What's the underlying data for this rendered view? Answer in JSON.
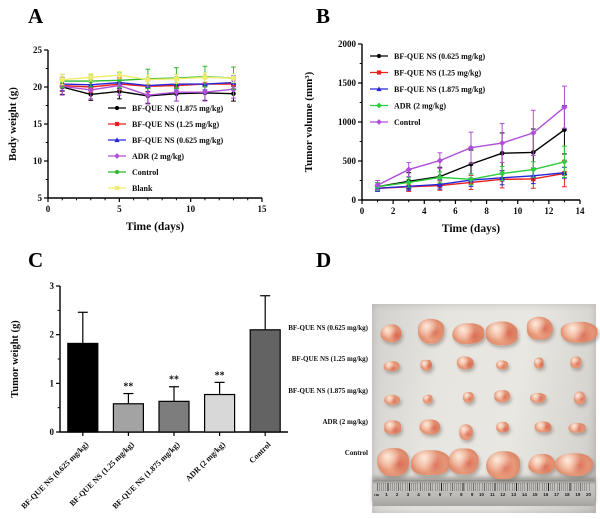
{
  "figure": {
    "panels": [
      {
        "label": "A"
      },
      {
        "label": "B"
      },
      {
        "label": "C"
      },
      {
        "label": "D"
      }
    ]
  },
  "chart_data": [
    {
      "id": "A",
      "name": "body-weight-line-chart",
      "type": "line",
      "title": "",
      "xlabel": "Time (days)",
      "ylabel": "Body weight (g)",
      "xlim": [
        0,
        15
      ],
      "xticks": [
        0,
        5,
        10,
        15
      ],
      "xminor": [
        1,
        2,
        3,
        4,
        6,
        7,
        8,
        9,
        11,
        12,
        13,
        14
      ],
      "ylim": [
        5,
        25
      ],
      "yticks": [
        5,
        10,
        15,
        20,
        25
      ],
      "yminor": [
        7.5,
        12.5,
        17.5,
        22.5
      ],
      "grid": false,
      "legend_position": "inside-bottom-right",
      "x": [
        1,
        3,
        5,
        7,
        9,
        11,
        13
      ],
      "series": [
        {
          "name": "BF-QUE NS (1.875 mg/kg)",
          "color": "#000000",
          "marker": "circle",
          "values": [
            20.0,
            19.0,
            19.4,
            18.8,
            19.1,
            19.2,
            19.1
          ],
          "errors": [
            1.0,
            0.8,
            1.0,
            1.0,
            1.0,
            1.0,
            1.0
          ]
        },
        {
          "name": "BF-QUE NS (1.25 mg/kg)",
          "color": "#e8221f",
          "marker": "square",
          "values": [
            20.2,
            20.0,
            20.4,
            20.1,
            20.2,
            20.4,
            20.4
          ],
          "errors": [
            0.8,
            0.7,
            0.8,
            0.8,
            0.8,
            0.8,
            0.8
          ]
        },
        {
          "name": "BF-QUE NS (0.625 mg/kg)",
          "color": "#2727d8",
          "marker": "triangle",
          "values": [
            20.4,
            20.3,
            20.6,
            20.2,
            20.4,
            20.4,
            20.6
          ],
          "errors": [
            0.9,
            0.8,
            0.8,
            0.8,
            0.8,
            0.8,
            0.9
          ]
        },
        {
          "name": "ADR (2 mg/kg)",
          "color": "#b04fd8",
          "marker": "diamond",
          "values": [
            20.1,
            19.6,
            20.2,
            18.9,
            19.3,
            19.3,
            19.7
          ],
          "errors": [
            1.2,
            1.2,
            1.3,
            1.2,
            1.2,
            1.2,
            1.2
          ]
        },
        {
          "name": "Control",
          "color": "#2db92d",
          "marker": "circle",
          "values": [
            20.8,
            20.8,
            20.9,
            21.1,
            21.2,
            21.4,
            21.2
          ],
          "errors": [
            0.9,
            0.8,
            1.0,
            1.3,
            1.4,
            1.4,
            1.5
          ]
        },
        {
          "name": "Blank",
          "color": "#f0ec6e",
          "marker": "square",
          "values": [
            21.0,
            21.3,
            21.6,
            21.0,
            21.1,
            21.3,
            21.2
          ],
          "errors": [
            0.7,
            0.5,
            0.5,
            0.6,
            0.6,
            0.6,
            0.6
          ]
        }
      ]
    },
    {
      "id": "B",
      "name": "tumor-volume-line-chart",
      "type": "line",
      "title": "",
      "xlabel": "Time (days)",
      "ylabel": "Tumor volume (mm³)",
      "xlim": [
        0,
        14
      ],
      "xticks": [
        0,
        2,
        4,
        6,
        8,
        10,
        12,
        14
      ],
      "xminor": [
        1,
        3,
        5,
        7,
        9,
        11,
        13
      ],
      "ylim": [
        0,
        2000
      ],
      "yticks": [
        0,
        500,
        1000,
        1500,
        2000
      ],
      "yminor": [
        250,
        750,
        1250,
        1750
      ],
      "grid": false,
      "legend_position": "inside-top-left",
      "x": [
        1,
        3,
        5,
        7,
        9,
        11,
        13
      ],
      "series": [
        {
          "name": "BF-QUE NS (0.625 mg/kg)",
          "color": "#000000",
          "marker": "circle",
          "values": [
            170,
            240,
            300,
            460,
            600,
            610,
            900
          ],
          "errors": [
            50,
            110,
            120,
            180,
            260,
            300,
            310
          ]
        },
        {
          "name": "BF-QUE NS (1.25 mg/kg)",
          "color": "#e8221f",
          "marker": "square",
          "values": [
            150,
            170,
            185,
            225,
            265,
            270,
            340
          ],
          "errors": [
            40,
            60,
            60,
            90,
            110,
            120,
            170
          ]
        },
        {
          "name": "BF-QUE NS (1.875 mg/kg)",
          "color": "#2727d8",
          "marker": "triangle",
          "values": [
            150,
            175,
            200,
            255,
            285,
            310,
            350
          ],
          "errors": [
            40,
            50,
            60,
            80,
            90,
            100,
            70
          ]
        },
        {
          "name": "ADR (2 mg/kg)",
          "color": "#2ecc40",
          "marker": "diamond",
          "values": [
            170,
            225,
            290,
            265,
            340,
            390,
            490
          ],
          "errors": [
            50,
            60,
            70,
            70,
            90,
            100,
            200
          ]
        },
        {
          "name": "Control",
          "color": "#b04fd8",
          "marker": "diamond",
          "values": [
            190,
            390,
            505,
            670,
            730,
            860,
            1190
          ],
          "errors": [
            60,
            90,
            100,
            200,
            250,
            290,
            270
          ]
        }
      ]
    },
    {
      "id": "C",
      "name": "tumor-weight-bar-chart",
      "type": "bar",
      "title": "",
      "xlabel": "",
      "ylabel": "Tumor weight (g)",
      "ylim": [
        0,
        3
      ],
      "yticks": [
        0,
        1,
        2,
        3
      ],
      "yminor": [
        0.5,
        1.5,
        2.5
      ],
      "grid": false,
      "categories": [
        "BF-QUE NS (0.625 mg/kg)",
        "BF-QUE NS (1.25 mg/kg)",
        "BF-QUE NS (1.875 mg/kg)",
        "ADR (2 mg/kg)",
        "Control"
      ],
      "values": [
        1.82,
        0.58,
        0.63,
        0.77,
        2.1
      ],
      "errors": [
        0.64,
        0.21,
        0.3,
        0.25,
        0.7
      ],
      "annotations": [
        "",
        "**",
        "**",
        "**",
        ""
      ],
      "bar_colors": [
        "#000000",
        "#a3a3a3",
        "#7d7d7d",
        "#d8d8d8",
        "#636363"
      ]
    }
  ],
  "photo_panel": {
    "id": "D",
    "description": "Excised tumors laid on white paper above a ruler",
    "columns": 6,
    "rows": [
      {
        "label": "BF-QUE NS (0.625 mg/kg)",
        "relative_size": "large"
      },
      {
        "label": "BF-QUE NS (1.25 mg/kg)",
        "relative_size": "small"
      },
      {
        "label": "BF-QUE NS (1.875 mg/kg)",
        "relative_size": "small"
      },
      {
        "label": "ADR (2 mg/kg)",
        "relative_size": "medium"
      },
      {
        "label": "Control",
        "relative_size": "largest"
      }
    ],
    "ruler": {
      "from": 1,
      "to": 20,
      "unit_label": "cm"
    }
  }
}
